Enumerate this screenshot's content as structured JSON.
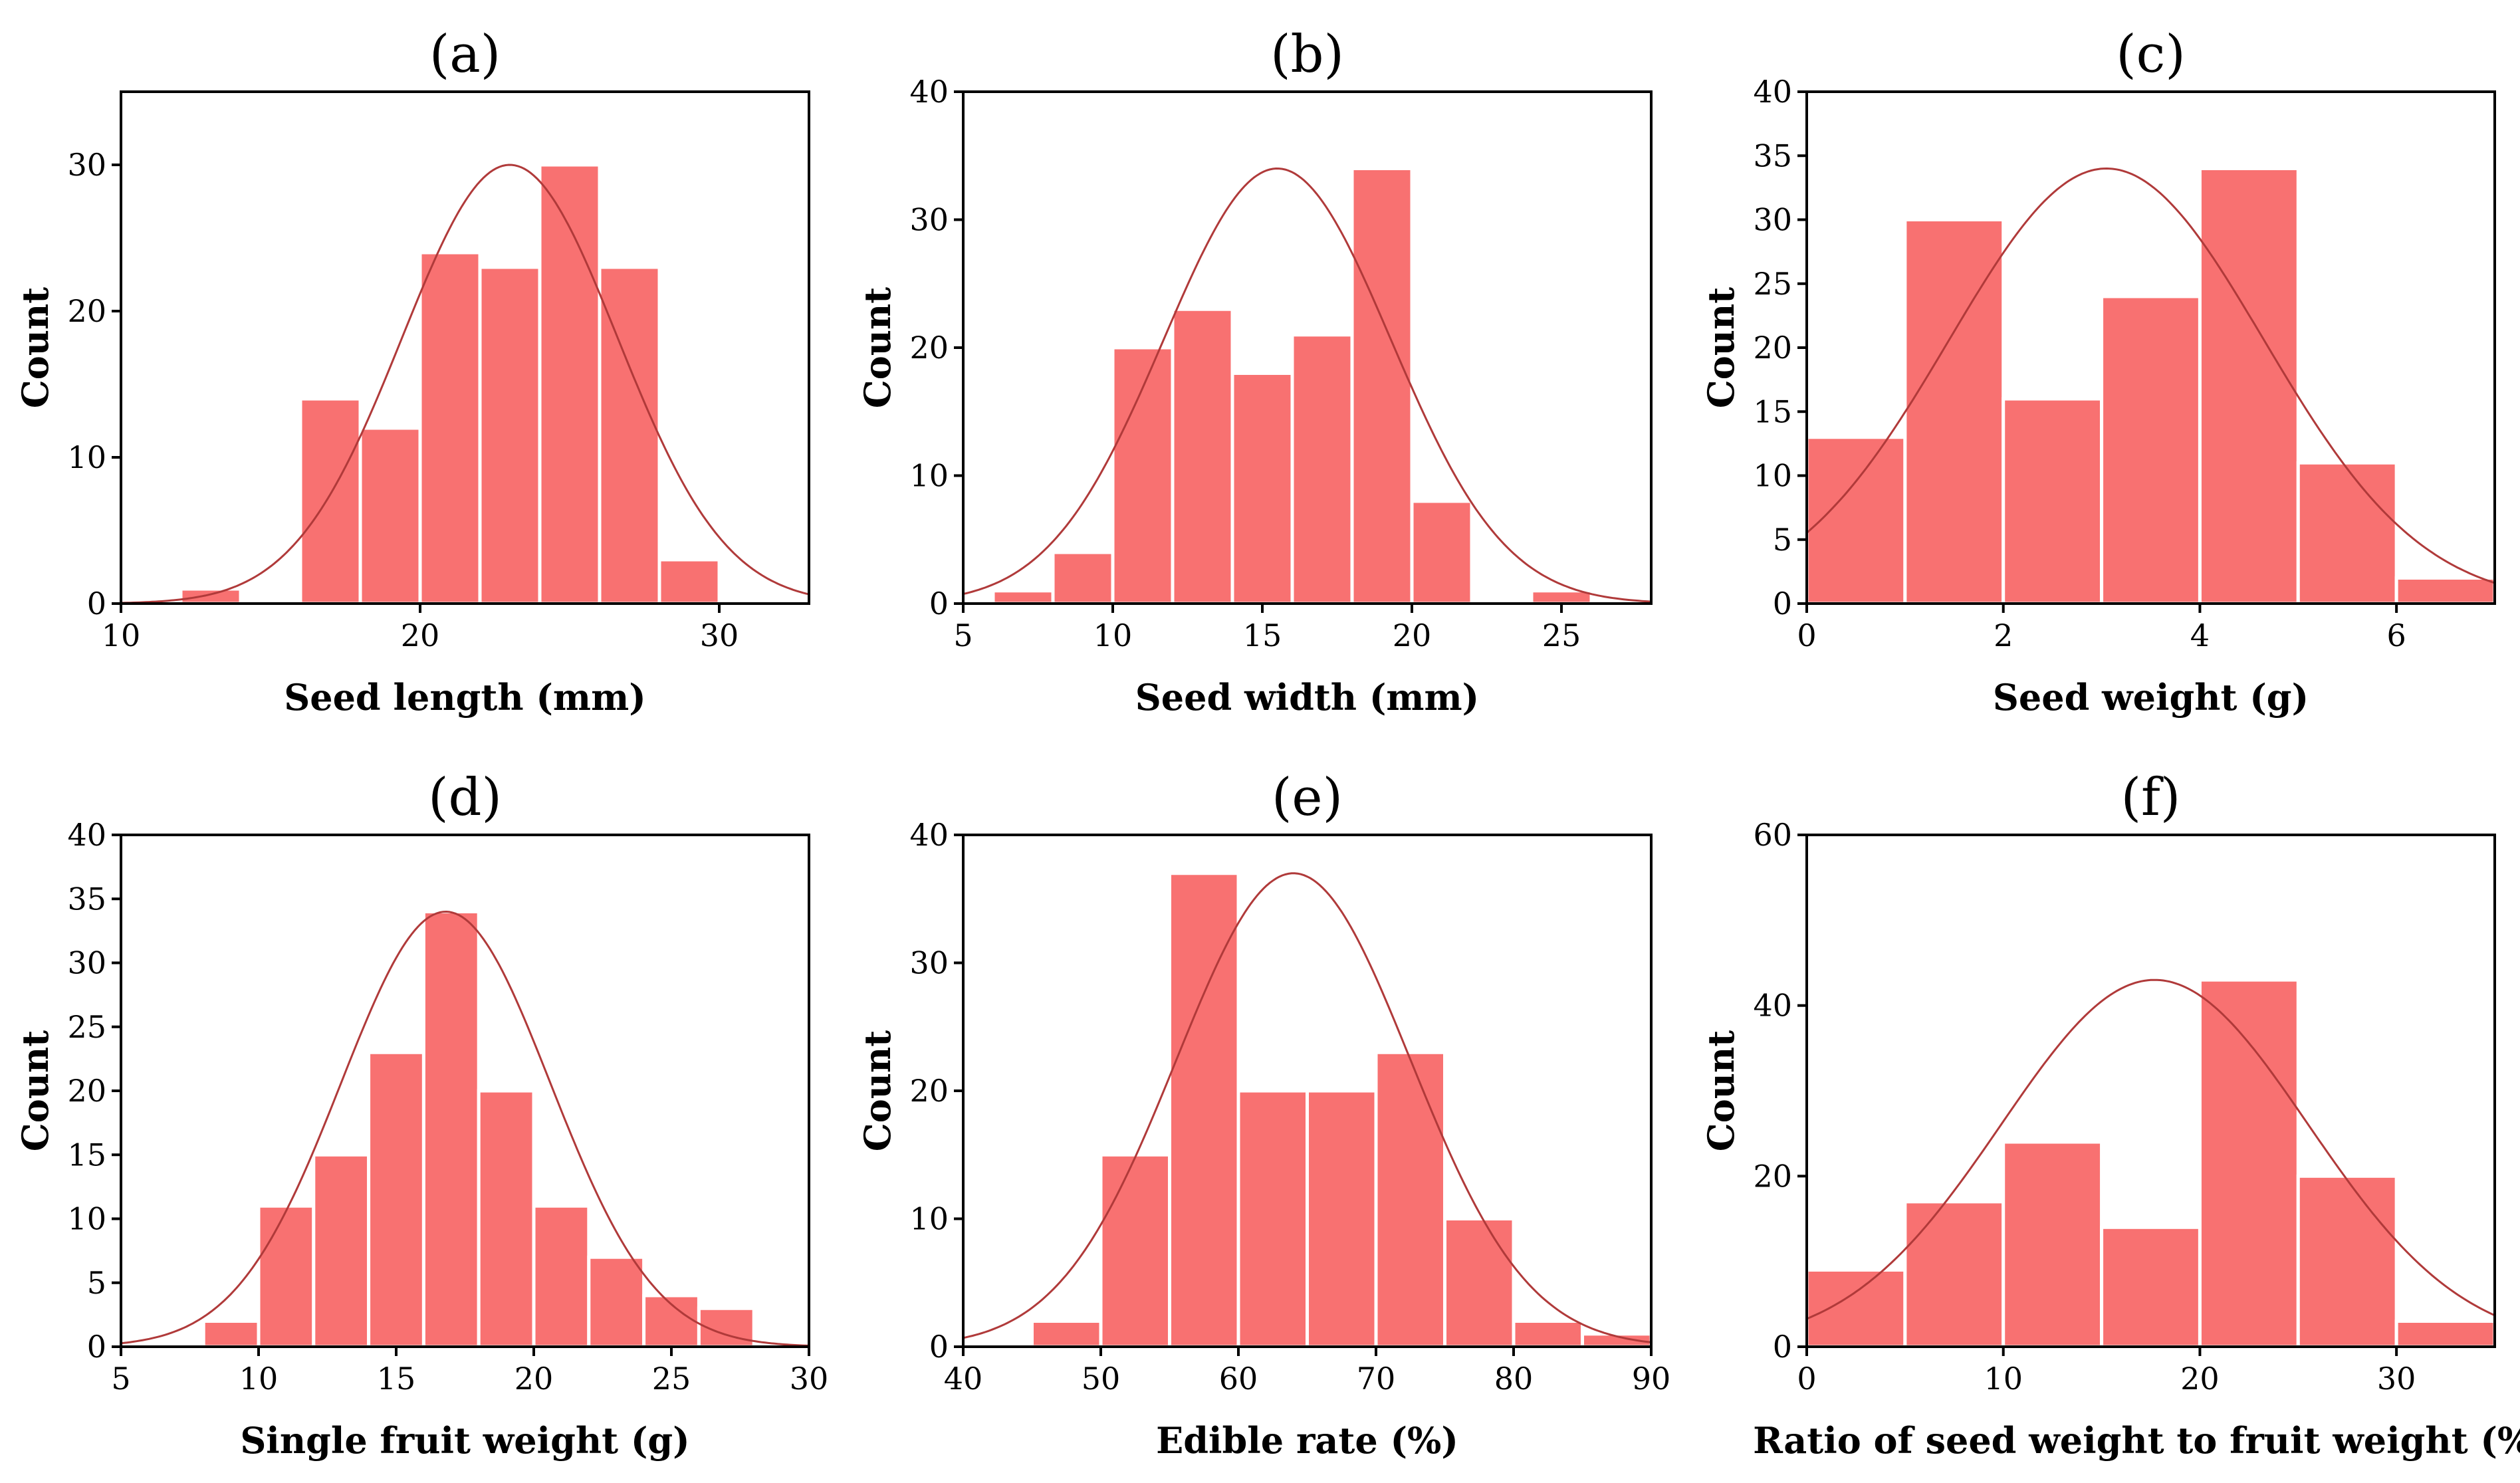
{
  "colors": {
    "bar": "#F87171",
    "curve": "#B03A3A"
  },
  "chart_data": [
    {
      "type": "bar",
      "title": "(a)",
      "xlabel": "Seed length (mm)",
      "ylabel": "Count",
      "xlim": [
        10,
        33
      ],
      "ylim": [
        0,
        35
      ],
      "xticks": [
        10,
        20,
        30
      ],
      "yticks": [
        0,
        10,
        20,
        30
      ],
      "bin_edges": [
        12,
        14,
        16,
        18,
        20,
        22,
        24,
        26,
        28,
        30
      ],
      "values": [
        1,
        0,
        14,
        12,
        24,
        23,
        30,
        23,
        3
      ],
      "fit_curve": {
        "mean": 23,
        "sd": 3.6,
        "peak": 30
      }
    },
    {
      "type": "bar",
      "title": "(b)",
      "xlabel": "Seed width (mm)",
      "ylabel": "Count",
      "xlim": [
        5,
        28
      ],
      "ylim": [
        0,
        40
      ],
      "xticks": [
        5,
        10,
        15,
        20,
        25
      ],
      "yticks": [
        0,
        10,
        20,
        30,
        40
      ],
      "bin_edges": [
        6,
        8,
        10,
        12,
        14,
        16,
        18,
        20,
        22,
        24,
        26
      ],
      "values": [
        1,
        4,
        20,
        23,
        18,
        21,
        34,
        8,
        0,
        1
      ],
      "fit_curve": {
        "mean": 15.5,
        "sd": 3.8,
        "peak": 34
      }
    },
    {
      "type": "bar",
      "title": "(c)",
      "xlabel": "Seed weight (g)",
      "ylabel": "Count",
      "xlim": [
        0,
        7
      ],
      "ylim": [
        0,
        40
      ],
      "xticks": [
        0,
        2,
        4,
        6
      ],
      "yticks": [
        0,
        5,
        10,
        15,
        20,
        25,
        30,
        35,
        40
      ],
      "bin_edges": [
        0,
        1,
        2,
        3,
        4,
        5,
        6,
        7
      ],
      "values": [
        13,
        30,
        16,
        24,
        34,
        11,
        2
      ],
      "fit_curve": {
        "mean": 3.05,
        "sd": 1.6,
        "peak": 34
      }
    },
    {
      "type": "bar",
      "title": "(d)",
      "xlabel": "Single fruit weight (g)",
      "ylabel": "Count",
      "xlim": [
        5,
        30
      ],
      "ylim": [
        0,
        40
      ],
      "xticks": [
        5,
        10,
        15,
        20,
        25,
        30
      ],
      "yticks": [
        0,
        5,
        10,
        15,
        20,
        25,
        30,
        35,
        40
      ],
      "bin_edges": [
        8,
        10,
        12,
        14,
        16,
        18,
        20,
        22,
        24,
        26,
        28
      ],
      "values": [
        2,
        11,
        15,
        23,
        34,
        20,
        11,
        7,
        4,
        3
      ],
      "fit_curve": {
        "mean": 16.8,
        "sd": 3.8,
        "peak": 34
      }
    },
    {
      "type": "bar",
      "title": "(e)",
      "xlabel": "Edible rate (%)",
      "ylabel": "Count",
      "xlim": [
        40,
        90
      ],
      "ylim": [
        0,
        40
      ],
      "xticks": [
        40,
        50,
        60,
        70,
        80,
        90
      ],
      "yticks": [
        0,
        10,
        20,
        30,
        40
      ],
      "bin_edges": [
        45,
        50,
        55,
        60,
        65,
        70,
        75,
        80,
        85,
        90
      ],
      "values": [
        2,
        15,
        37,
        20,
        20,
        23,
        10,
        2,
        1
      ],
      "fit_curve": {
        "mean": 64,
        "sd": 8.5,
        "peak": 37
      }
    },
    {
      "type": "bar",
      "title": "(f)",
      "xlabel": "Ratio of seed weight to fruit weight (%)",
      "ylabel": "Count",
      "xlim": [
        0,
        35
      ],
      "ylim": [
        0,
        60
      ],
      "xticks": [
        0,
        10,
        20,
        30
      ],
      "yticks": [
        0,
        20,
        40,
        60
      ],
      "bin_edges": [
        0,
        5,
        10,
        15,
        20,
        25,
        30,
        35
      ],
      "values": [
        9,
        17,
        24,
        14,
        43,
        20,
        3
      ],
      "fit_curve": {
        "mean": 17.7,
        "sd": 7.8,
        "peak": 43
      }
    }
  ]
}
